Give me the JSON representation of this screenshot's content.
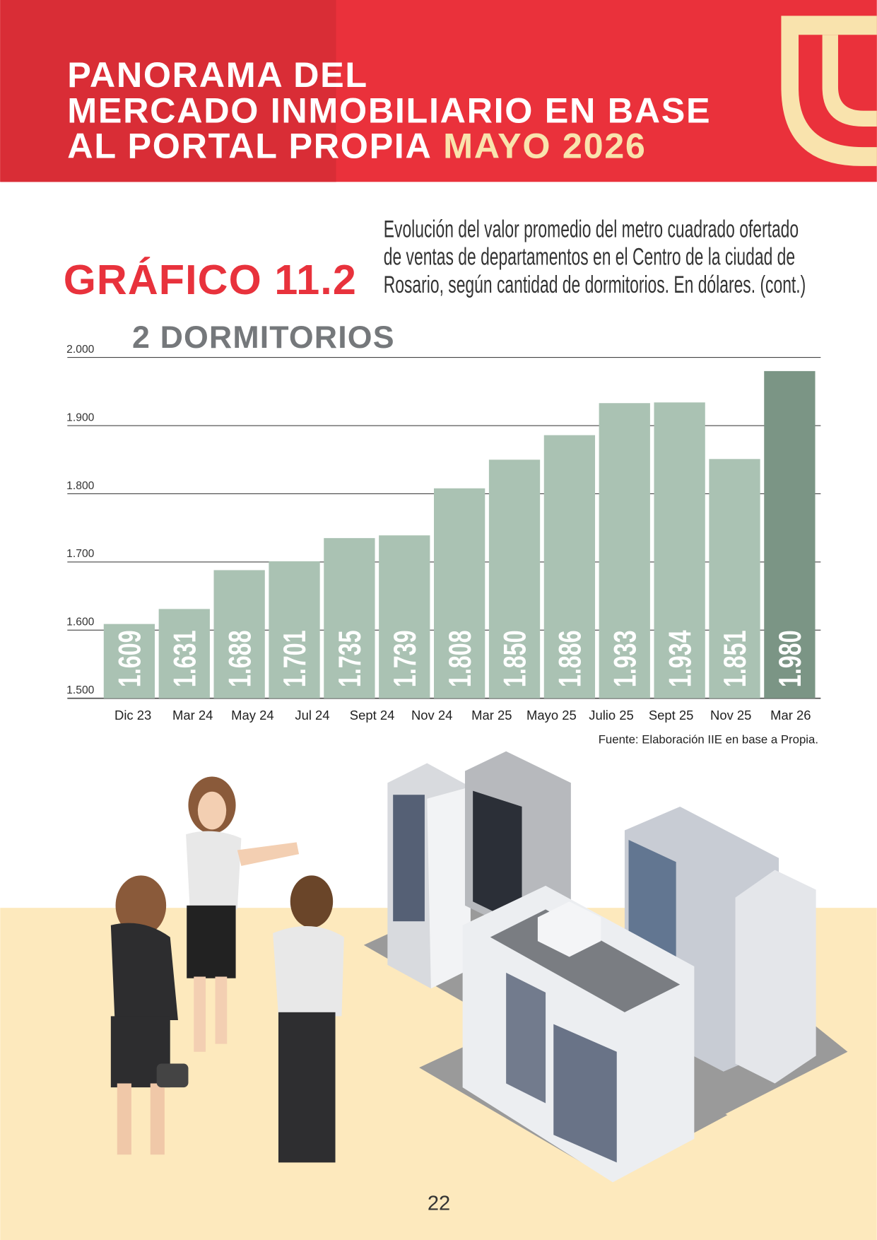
{
  "header": {
    "title_lines": [
      "PANORAMA DEL",
      "MERCADO INMOBILIARIO EN BASE",
      "AL PORTAL PROPIA"
    ],
    "title_highlight": "MAYO 2026"
  },
  "section": {
    "label": "GRÁFICO 11.2",
    "description_lines": [
      "Evolución del valor promedio del metro cuadrado ofertado",
      "de ventas de departamentos en el Centro de la ciudad de",
      "Rosario, según cantidad de dormitorios. En dólares.  (cont.)"
    ]
  },
  "chart_data": {
    "type": "bar",
    "title": "2 DORMITORIOS",
    "categories": [
      "Dic 23",
      "Mar 24",
      "May 24",
      "Jul 24",
      "Sept 24",
      "Nov 24",
      null,
      "Mar 25",
      "Mayo 25",
      "Julio 25",
      "Sept 25",
      "Nov 25",
      "Mar 26"
    ],
    "values": [
      1609,
      1631,
      1688,
      1701,
      1735,
      1739,
      1808,
      1850,
      1886,
      1933,
      1934,
      1851,
      1980
    ],
    "value_labels": [
      "1.609",
      "1.631",
      "1.688",
      "1.701",
      "1.735",
      "1.739",
      "1.808",
      "1.850",
      "1.886",
      "1.933",
      "1.934",
      "1.851",
      "1.980"
    ],
    "colors": [
      "#aac2b3",
      "#aac2b3",
      "#aac2b3",
      "#aac2b3",
      "#aac2b3",
      "#aac2b3",
      "#aac2b3",
      "#aac2b3",
      "#aac2b3",
      "#aac2b3",
      "#aac2b3",
      "#aac2b3",
      "#7b9585"
    ],
    "ylim": [
      1500,
      2000
    ],
    "yticks": [
      {
        "value": 1500,
        "label": "1.500"
      },
      {
        "value": 1600,
        "label": "1.600"
      },
      {
        "value": 1700,
        "label": "1.700"
      },
      {
        "value": 1800,
        "label": "1.800"
      },
      {
        "value": 1900,
        "label": "1.900"
      },
      {
        "value": 2000,
        "label": "2.000"
      }
    ],
    "grid": true,
    "source": "Fuente: Elaboración IIE en base a Propia."
  },
  "footer": {
    "page_number": 22
  }
}
